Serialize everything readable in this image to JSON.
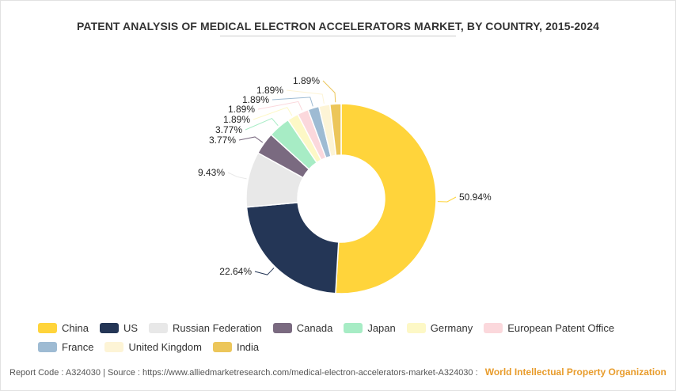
{
  "title": "PATENT ANALYSIS OF MEDICAL ELECTRON ACCELERATORS MARKET, BY COUNTRY, 2015-2024",
  "chart_data": {
    "type": "pie",
    "donut": true,
    "legend_position": "bottom",
    "slices": [
      {
        "label": "China",
        "value": 50.94,
        "display": "50.94%",
        "color": "#ffd43b"
      },
      {
        "label": "US",
        "value": 22.64,
        "display": "22.64%",
        "color": "#243656"
      },
      {
        "label": "Russian Federation",
        "value": 9.43,
        "display": "9.43%",
        "color": "#e8e8e8"
      },
      {
        "label": "Canada",
        "value": 3.77,
        "display": "3.77%",
        "color": "#7a6a80"
      },
      {
        "label": "Japan",
        "value": 3.77,
        "display": "3.77%",
        "color": "#a7ecc5"
      },
      {
        "label": "Germany",
        "value": 1.89,
        "display": "1.89%",
        "color": "#fdf8c6"
      },
      {
        "label": "European Patent Office",
        "value": 1.89,
        "display": "1.89%",
        "color": "#fbd8dc"
      },
      {
        "label": "France",
        "value": 1.89,
        "display": "1.89%",
        "color": "#9ebbd3"
      },
      {
        "label": "United Kingdom",
        "value": 1.89,
        "display": "1.89%",
        "color": "#fdf4d6"
      },
      {
        "label": "India",
        "value": 1.89,
        "display": "1.89%",
        "color": "#ecc65a"
      }
    ]
  },
  "footer": {
    "report_code": "Report Code : A324030",
    "separator": "|",
    "source": "Source : https://www.alliedmarketresearch.com/medical-electron-accelerators-market-A324030",
    "source_separator": ":",
    "brand": "World Intellectual Property Organization"
  }
}
